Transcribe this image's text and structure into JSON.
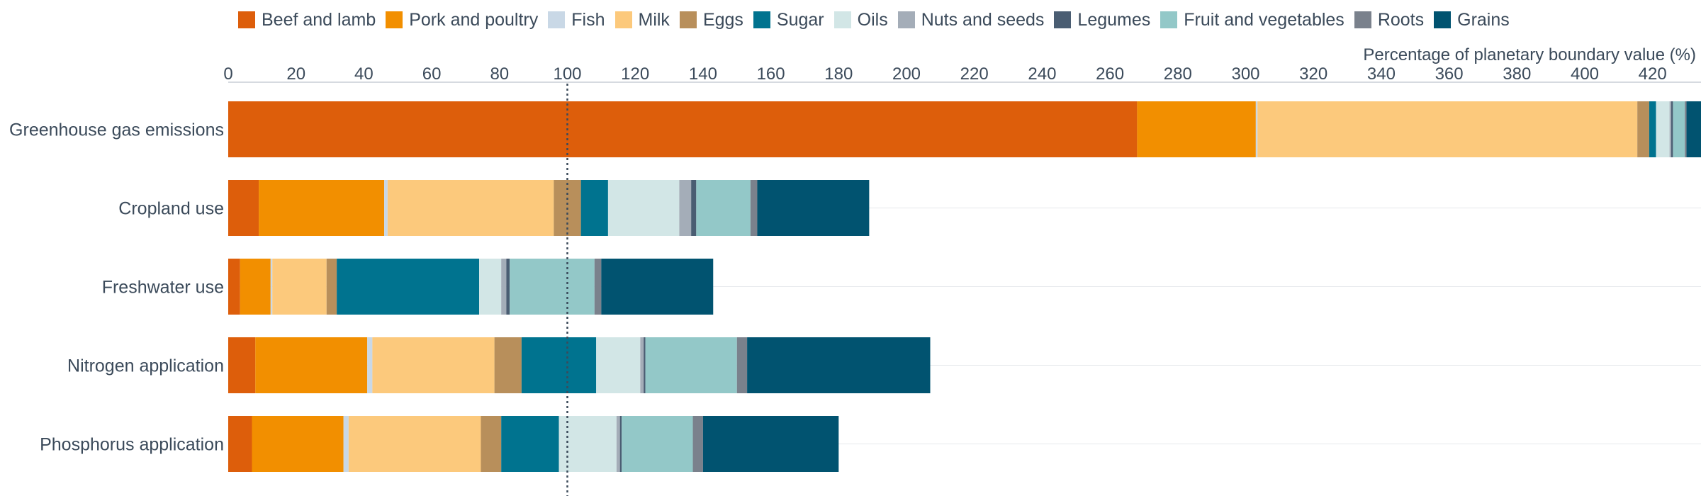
{
  "chart_data": {
    "type": "bar",
    "orientation": "horizontal",
    "stacked": true,
    "xlabel": "Percentage of planetary boundary value (%)",
    "ylabel": "",
    "xlim": [
      0,
      435
    ],
    "xticks": [
      0,
      20,
      40,
      60,
      80,
      100,
      120,
      140,
      160,
      180,
      200,
      220,
      240,
      260,
      280,
      300,
      320,
      340,
      360,
      380,
      400,
      420
    ],
    "reference_line": 100,
    "legend_position": "top",
    "grid": "horizontal-only",
    "categories": [
      "Greenhouse gas emissions",
      "Cropland use",
      "Freshwater use",
      "Nitrogen application",
      "Phosphorus application"
    ],
    "series": [
      {
        "name": "Beef and lamb",
        "color": "#dd5e0b",
        "values": [
          268,
          9,
          3.5,
          8,
          7
        ]
      },
      {
        "name": "Pork and poultry",
        "color": "#f28f00",
        "values": [
          35,
          37,
          9,
          33,
          27
        ]
      },
      {
        "name": "Fish",
        "color": "#c9d8e6",
        "values": [
          0.5,
          1,
          0.5,
          1.5,
          1.5
        ]
      },
      {
        "name": "Milk",
        "color": "#fcc97c",
        "values": [
          112,
          49,
          16,
          36,
          39
        ]
      },
      {
        "name": "Eggs",
        "color": "#b88f5b",
        "values": [
          3.5,
          8,
          3,
          8,
          6
        ]
      },
      {
        "name": "Sugar",
        "color": "#00738f",
        "values": [
          2,
          8,
          42,
          22,
          17
        ]
      },
      {
        "name": "Oils",
        "color": "#d2e6e6",
        "values": [
          4,
          21,
          6.5,
          13,
          17
        ]
      },
      {
        "name": "Nuts and seeds",
        "color": "#a4adb8",
        "values": [
          0.5,
          3.5,
          1.5,
          1,
          1
        ]
      },
      {
        "name": "Legumes",
        "color": "#4a5d72",
        "values": [
          0.5,
          1.5,
          1,
          0.5,
          0.5
        ]
      },
      {
        "name": "Fruit and vegetables",
        "color": "#93c8c8",
        "values": [
          3.5,
          16,
          25,
          27,
          21
        ]
      },
      {
        "name": "Roots",
        "color": "#7a818c",
        "values": [
          0.5,
          2,
          2,
          3,
          3
        ]
      },
      {
        "name": "Grains",
        "color": "#015370",
        "values": [
          4.5,
          33,
          33,
          54,
          40
        ]
      }
    ]
  }
}
